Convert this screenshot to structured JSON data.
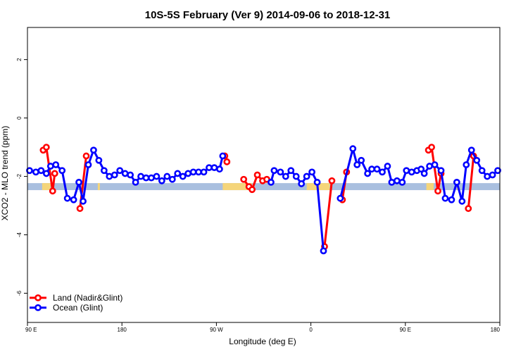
{
  "chart_data": {
    "type": "line",
    "title": "10S-5S February (Ver 9)   2014-09-06 to 2018-12-31",
    "xlabel": "Longitude (deg E)",
    "ylabel": "XCO2 - MLO trend (ppm)",
    "xlim": [
      90,
      540
    ],
    "ylim": [
      -7.0,
      3.1
    ],
    "x_ticks": [
      {
        "value": 90,
        "label": "90 E"
      },
      {
        "value": 180,
        "label": "180"
      },
      {
        "value": 270,
        "label": "90 W"
      },
      {
        "value": 360,
        "label": "0"
      },
      {
        "value": 450,
        "label": "90 E"
      },
      {
        "value": 540,
        "label": "180"
      }
    ],
    "y_ticks": [
      {
        "value": 2,
        "label": "2"
      },
      {
        "value": 0,
        "label": "0"
      },
      {
        "value": -2,
        "label": "-2"
      },
      {
        "value": -4,
        "label": "-4"
      },
      {
        "value": -6,
        "label": "-6"
      }
    ],
    "legend_position": "bottom-left",
    "land_band": {
      "y_from": -2.47,
      "y_to": -2.23,
      "ocean_color": "#a9bfdf",
      "land_color": "#f5d57a"
    },
    "land_segments": [
      [
        104,
        112
      ],
      [
        157,
        159
      ],
      [
        276,
        304
      ],
      [
        356,
        378
      ],
      [
        470,
        477
      ],
      [
        499,
        500
      ]
    ],
    "series": [
      {
        "name": "Land (Nadir&Glint)",
        "color": "#ff0000",
        "segments": [
          [
            [
              105,
              -1.1
            ],
            [
              108,
              -1.0
            ],
            [
              114,
              -2.5
            ],
            [
              116,
              -1.9
            ]
          ],
          [
            [
              140,
              -3.1
            ],
            [
              146,
              -1.3
            ]
          ],
          [
            [
              278,
              -1.3
            ],
            [
              280,
              -1.5
            ]
          ],
          [
            [
              296,
              -2.1
            ],
            [
              301,
              -2.35
            ],
            [
              304,
              -2.45
            ],
            [
              309,
              -1.95
            ],
            [
              314,
              -2.15
            ],
            [
              318,
              -2.1
            ]
          ],
          [
            [
              373,
              -4.4
            ],
            [
              380,
              -2.15
            ]
          ],
          [
            [
              390,
              -2.8
            ],
            [
              394,
              -1.85
            ]
          ],
          [
            [
              472,
              -1.1
            ],
            [
              475,
              -1.0
            ],
            [
              481,
              -2.5
            ],
            [
              484,
              -1.9
            ]
          ],
          [
            [
              510,
              -3.1
            ],
            [
              515,
              -1.3
            ]
          ]
        ]
      },
      {
        "name": "Ocean (Glint)",
        "color": "#0000ff",
        "segments": [
          [
            [
              92,
              -1.8
            ],
            [
              98,
              -1.85
            ],
            [
              103,
              -1.8
            ],
            [
              108,
              -1.9
            ],
            [
              112,
              -1.65
            ],
            [
              117,
              -1.6
            ],
            [
              123,
              -1.8
            ],
            [
              128,
              -2.75
            ],
            [
              134,
              -2.8
            ],
            [
              139,
              -2.2
            ],
            [
              143,
              -2.85
            ],
            [
              148,
              -1.6
            ],
            [
              153,
              -1.1
            ],
            [
              158,
              -1.45
            ],
            [
              163,
              -1.8
            ],
            [
              168,
              -2.0
            ],
            [
              173,
              -1.95
            ],
            [
              178,
              -1.8
            ],
            [
              183,
              -1.9
            ],
            [
              188,
              -1.95
            ],
            [
              193,
              -2.2
            ],
            [
              198,
              -2.0
            ],
            [
              203,
              -2.05
            ],
            [
              208,
              -2.05
            ],
            [
              213,
              -2.0
            ],
            [
              218,
              -2.15
            ],
            [
              223,
              -2.0
            ],
            [
              228,
              -2.1
            ],
            [
              233,
              -1.9
            ],
            [
              238,
              -2.0
            ],
            [
              243,
              -1.9
            ],
            [
              248,
              -1.85
            ],
            [
              253,
              -1.85
            ],
            [
              258,
              -1.85
            ],
            [
              263,
              -1.7
            ],
            [
              268,
              -1.7
            ],
            [
              273,
              -1.75
            ],
            [
              276,
              -1.3
            ]
          ],
          [
            [
              322,
              -2.2
            ],
            [
              325,
              -1.8
            ],
            [
              331,
              -1.85
            ],
            [
              336,
              -2.0
            ],
            [
              341,
              -1.8
            ],
            [
              346,
              -2.0
            ],
            [
              351,
              -2.25
            ],
            [
              356,
              -2.0
            ],
            [
              361,
              -1.85
            ],
            [
              366,
              -2.2
            ],
            [
              372,
              -4.55
            ]
          ],
          [
            [
              388,
              -2.75
            ],
            [
              400,
              -1.05
            ],
            [
              404,
              -1.6
            ],
            [
              408,
              -1.45
            ],
            [
              414,
              -1.9
            ],
            [
              418,
              -1.75
            ],
            [
              423,
              -1.75
            ],
            [
              428,
              -1.85
            ],
            [
              433,
              -1.65
            ],
            [
              437,
              -2.2
            ],
            [
              442,
              -2.15
            ],
            [
              447,
              -2.2
            ],
            [
              451,
              -1.8
            ],
            [
              456,
              -1.85
            ],
            [
              461,
              -1.8
            ],
            [
              465,
              -1.75
            ],
            [
              468,
              -1.9
            ],
            [
              473,
              -1.65
            ],
            [
              478,
              -1.6
            ],
            [
              484,
              -1.8
            ],
            [
              488,
              -2.75
            ],
            [
              494,
              -2.8
            ],
            [
              499,
              -2.2
            ],
            [
              504,
              -2.85
            ],
            [
              508,
              -1.6
            ],
            [
              513,
              -1.1
            ],
            [
              518,
              -1.45
            ],
            [
              523,
              -1.8
            ],
            [
              528,
              -2.0
            ],
            [
              533,
              -1.95
            ],
            [
              538,
              -1.8
            ]
          ]
        ]
      }
    ]
  }
}
